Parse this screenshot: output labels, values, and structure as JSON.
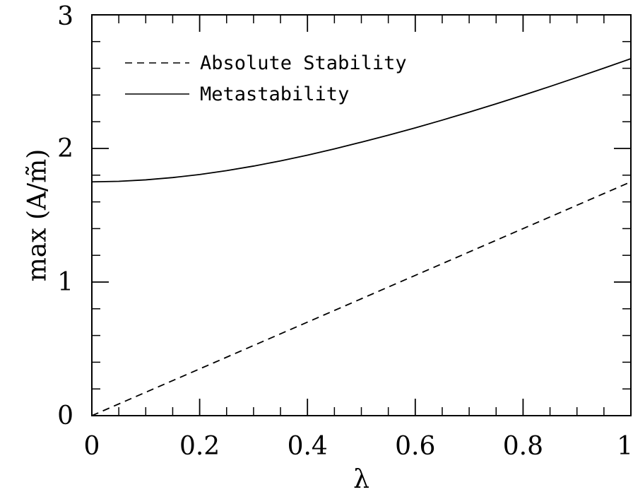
{
  "chart_data": {
    "type": "line",
    "xlabel": "λ",
    "ylabel": "max (A/m̃)",
    "xlim": [
      0,
      1
    ],
    "ylim": [
      0,
      3
    ],
    "x_ticks": [
      "0",
      "0.2",
      "0.4",
      "0.6",
      "0.8",
      "1"
    ],
    "y_ticks": [
      "0",
      "1",
      "2",
      "3"
    ],
    "x_tick_values": [
      0,
      0.2,
      0.4,
      0.6,
      0.8,
      1
    ],
    "y_tick_values": [
      0,
      1,
      2,
      3
    ],
    "x_minor_step": 0.05,
    "y_minor_step": 0.2,
    "grid": false,
    "legend_position": "top-left",
    "series": [
      {
        "name": "Absolute Stability",
        "style": "dashed",
        "color": "#000000",
        "x": [
          0,
          0.1,
          0.2,
          0.3,
          0.4,
          0.5,
          0.6,
          0.7,
          0.8,
          0.9,
          1.0
        ],
        "y": [
          0,
          0.175,
          0.35,
          0.525,
          0.7,
          0.875,
          1.05,
          1.225,
          1.4,
          1.575,
          1.75
        ]
      },
      {
        "name": "Metastability",
        "style": "solid",
        "color": "#000000",
        "x": [
          0,
          0.05,
          0.1,
          0.15,
          0.2,
          0.25,
          0.3,
          0.35,
          0.4,
          0.45,
          0.5,
          0.55,
          0.6,
          0.65,
          0.7,
          0.75,
          0.8,
          0.85,
          0.9,
          0.95,
          1.0
        ],
        "y": [
          1.75,
          1.754,
          1.765,
          1.782,
          1.805,
          1.834,
          1.868,
          1.907,
          1.95,
          1.997,
          2.047,
          2.099,
          2.154,
          2.212,
          2.272,
          2.334,
          2.398,
          2.464,
          2.532,
          2.601,
          2.672
        ]
      }
    ]
  }
}
